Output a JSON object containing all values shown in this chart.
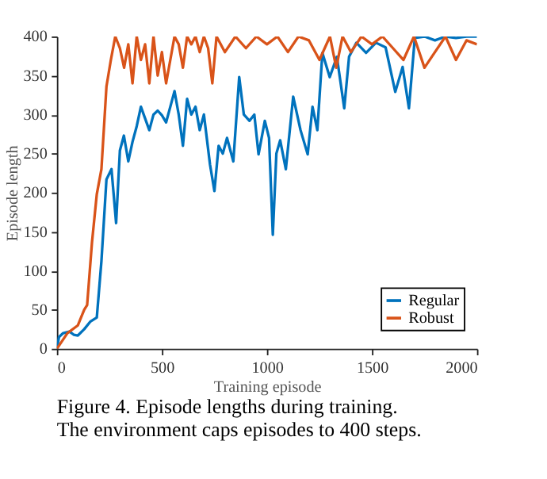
{
  "chart_data": {
    "type": "line",
    "xlabel": "Training episode",
    "ylabel": "Episode length",
    "xlim": [
      0,
      2000
    ],
    "ylim": [
      0,
      400
    ],
    "xticks": [
      0,
      500,
      1000,
      1500,
      2000
    ],
    "yticks": [
      0,
      50,
      100,
      150,
      200,
      250,
      300,
      350,
      400
    ],
    "grid": false,
    "legend": "bottom right",
    "line_style": "solid",
    "marker": "none",
    "annotations": [
      "Figure 4.  Episode lengths during training. The environment caps episodes to 400 steps."
    ],
    "series": [
      {
        "name": "Regular",
        "color": "#0072bd",
        "x": [
          0,
          10,
          30,
          60,
          80,
          100,
          130,
          160,
          190,
          212,
          236,
          260,
          282,
          300,
          319,
          340,
          360,
          380,
          400,
          420,
          440,
          460,
          480,
          500,
          520,
          540,
          560,
          580,
          600,
          620,
          640,
          660,
          680,
          700,
          729,
          750,
          770,
          790,
          810,
          840,
          868,
          890,
          917,
          940,
          960,
          990,
          1010,
          1028,
          1045,
          1063,
          1090,
          1125,
          1160,
          1194,
          1217,
          1240,
          1264,
          1299,
          1333,
          1368,
          1391,
          1426,
          1472,
          1519,
          1565,
          1611,
          1646,
          1676,
          1704,
          1750,
          1800,
          1850,
          1900,
          1950,
          2000
        ],
        "values": [
          0,
          15,
          20,
          22,
          18,
          17,
          25,
          35,
          40,
          112,
          217,
          230,
          161,
          254,
          273,
          240,
          265,
          285,
          310,
          295,
          280,
          300,
          305,
          299,
          290,
          310,
          330,
          300,
          260,
          320,
          300,
          310,
          280,
          300,
          236,
          202,
          260,
          250,
          270,
          240,
          348,
          300,
          292,
          300,
          249,
          292,
          270,
          146,
          250,
          267,
          230,
          323,
          280,
          249,
          310,
          280,
          379,
          348,
          374,
          308,
          374,
          392,
          379,
          392,
          386,
          329,
          361,
          308,
          398,
          400,
          395,
          400,
          398,
          400,
          400
        ]
      },
      {
        "name": "Robust",
        "color": "#d95319",
        "x": [
          0,
          50,
          100,
          130,
          144,
          167,
          190,
          212,
          236,
          257,
          278,
          300,
          320,
          340,
          360,
          380,
          400,
          420,
          440,
          460,
          480,
          500,
          520,
          540,
          560,
          580,
          600,
          620,
          640,
          660,
          680,
          700,
          720,
          740,
          760,
          800,
          850,
          900,
          950,
          1000,
          1050,
          1100,
          1150,
          1200,
          1250,
          1300,
          1330,
          1360,
          1400,
          1450,
          1500,
          1550,
          1600,
          1650,
          1700,
          1750,
          1800,
          1850,
          1900,
          1950,
          2000
        ],
        "values": [
          0,
          20,
          30,
          50,
          56,
          136,
          198,
          230,
          336,
          370,
          400,
          385,
          360,
          390,
          340,
          400,
          370,
          390,
          340,
          400,
          350,
          380,
          340,
          370,
          400,
          390,
          360,
          400,
          390,
          400,
          380,
          400,
          385,
          340,
          400,
          380,
          400,
          385,
          400,
          390,
          400,
          380,
          400,
          395,
          370,
          400,
          360,
          400,
          380,
          400,
          390,
          400,
          385,
          370,
          400,
          360,
          380,
          400,
          370,
          395,
          390
        ]
      }
    ]
  }
}
